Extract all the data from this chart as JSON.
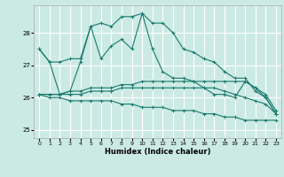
{
  "xlabel": "Humidex (Indice chaleur)",
  "bg_color": "#cceae4",
  "grid_color": "#ffffff",
  "line_color": "#1a7a6e",
  "xlim": [
    -0.5,
    23.5
  ],
  "ylim": [
    24.75,
    28.85
  ],
  "yticks": [
    25,
    26,
    27,
    28
  ],
  "xticks": [
    0,
    1,
    2,
    3,
    4,
    5,
    6,
    7,
    8,
    9,
    10,
    11,
    12,
    13,
    14,
    15,
    16,
    17,
    18,
    19,
    20,
    21,
    22,
    23
  ],
  "s_max": [
    27.5,
    27.1,
    27.1,
    27.2,
    27.2,
    28.2,
    28.3,
    28.2,
    28.5,
    28.5,
    28.6,
    28.3,
    28.3,
    28.0,
    27.5,
    27.4,
    27.2,
    27.1,
    26.8,
    26.6,
    26.6,
    26.2,
    26.0,
    25.5
  ],
  "s_mid": [
    27.5,
    27.1,
    26.1,
    26.2,
    27.1,
    28.2,
    27.2,
    27.6,
    27.8,
    27.5,
    28.6,
    27.5,
    26.8,
    26.6,
    26.6,
    26.5,
    26.3,
    26.1,
    26.1,
    26.0,
    26.5,
    26.3,
    26.0,
    25.5
  ],
  "s_flat1": [
    26.1,
    26.1,
    26.1,
    26.2,
    26.2,
    26.3,
    26.3,
    26.3,
    26.4,
    26.4,
    26.5,
    26.5,
    26.5,
    26.5,
    26.5,
    26.5,
    26.5,
    26.5,
    26.5,
    26.5,
    26.5,
    26.3,
    26.1,
    25.6
  ],
  "s_flat2": [
    26.1,
    26.1,
    26.1,
    26.1,
    26.1,
    26.2,
    26.2,
    26.2,
    26.3,
    26.3,
    26.3,
    26.3,
    26.3,
    26.3,
    26.3,
    26.3,
    26.3,
    26.3,
    26.2,
    26.1,
    26.0,
    25.9,
    25.8,
    25.5
  ],
  "s_down": [
    26.1,
    26.0,
    26.0,
    25.9,
    25.9,
    25.9,
    25.9,
    25.9,
    25.8,
    25.8,
    25.7,
    25.7,
    25.7,
    25.6,
    25.6,
    25.6,
    25.5,
    25.5,
    25.4,
    25.4,
    25.3,
    25.3,
    25.3,
    25.3
  ]
}
